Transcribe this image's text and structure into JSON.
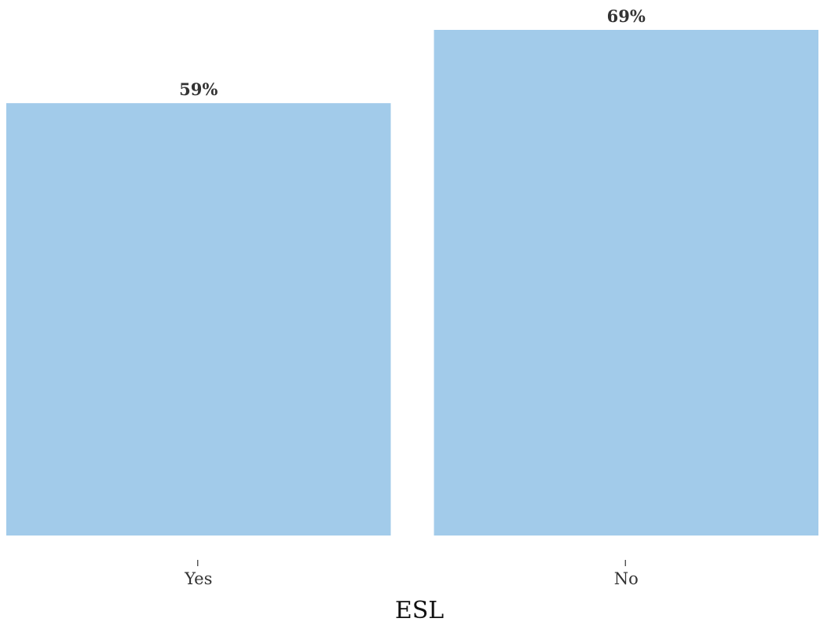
{
  "chart_data": {
    "type": "bar",
    "categories": [
      "Yes",
      "No"
    ],
    "values": [
      59,
      69
    ],
    "data_labels": [
      "59%",
      "69%"
    ],
    "title": "",
    "xlabel": "ESL",
    "ylabel": "",
    "ylim": [
      0,
      69
    ],
    "grid": false,
    "legend": "none",
    "bar_color": "#a2cbea"
  }
}
